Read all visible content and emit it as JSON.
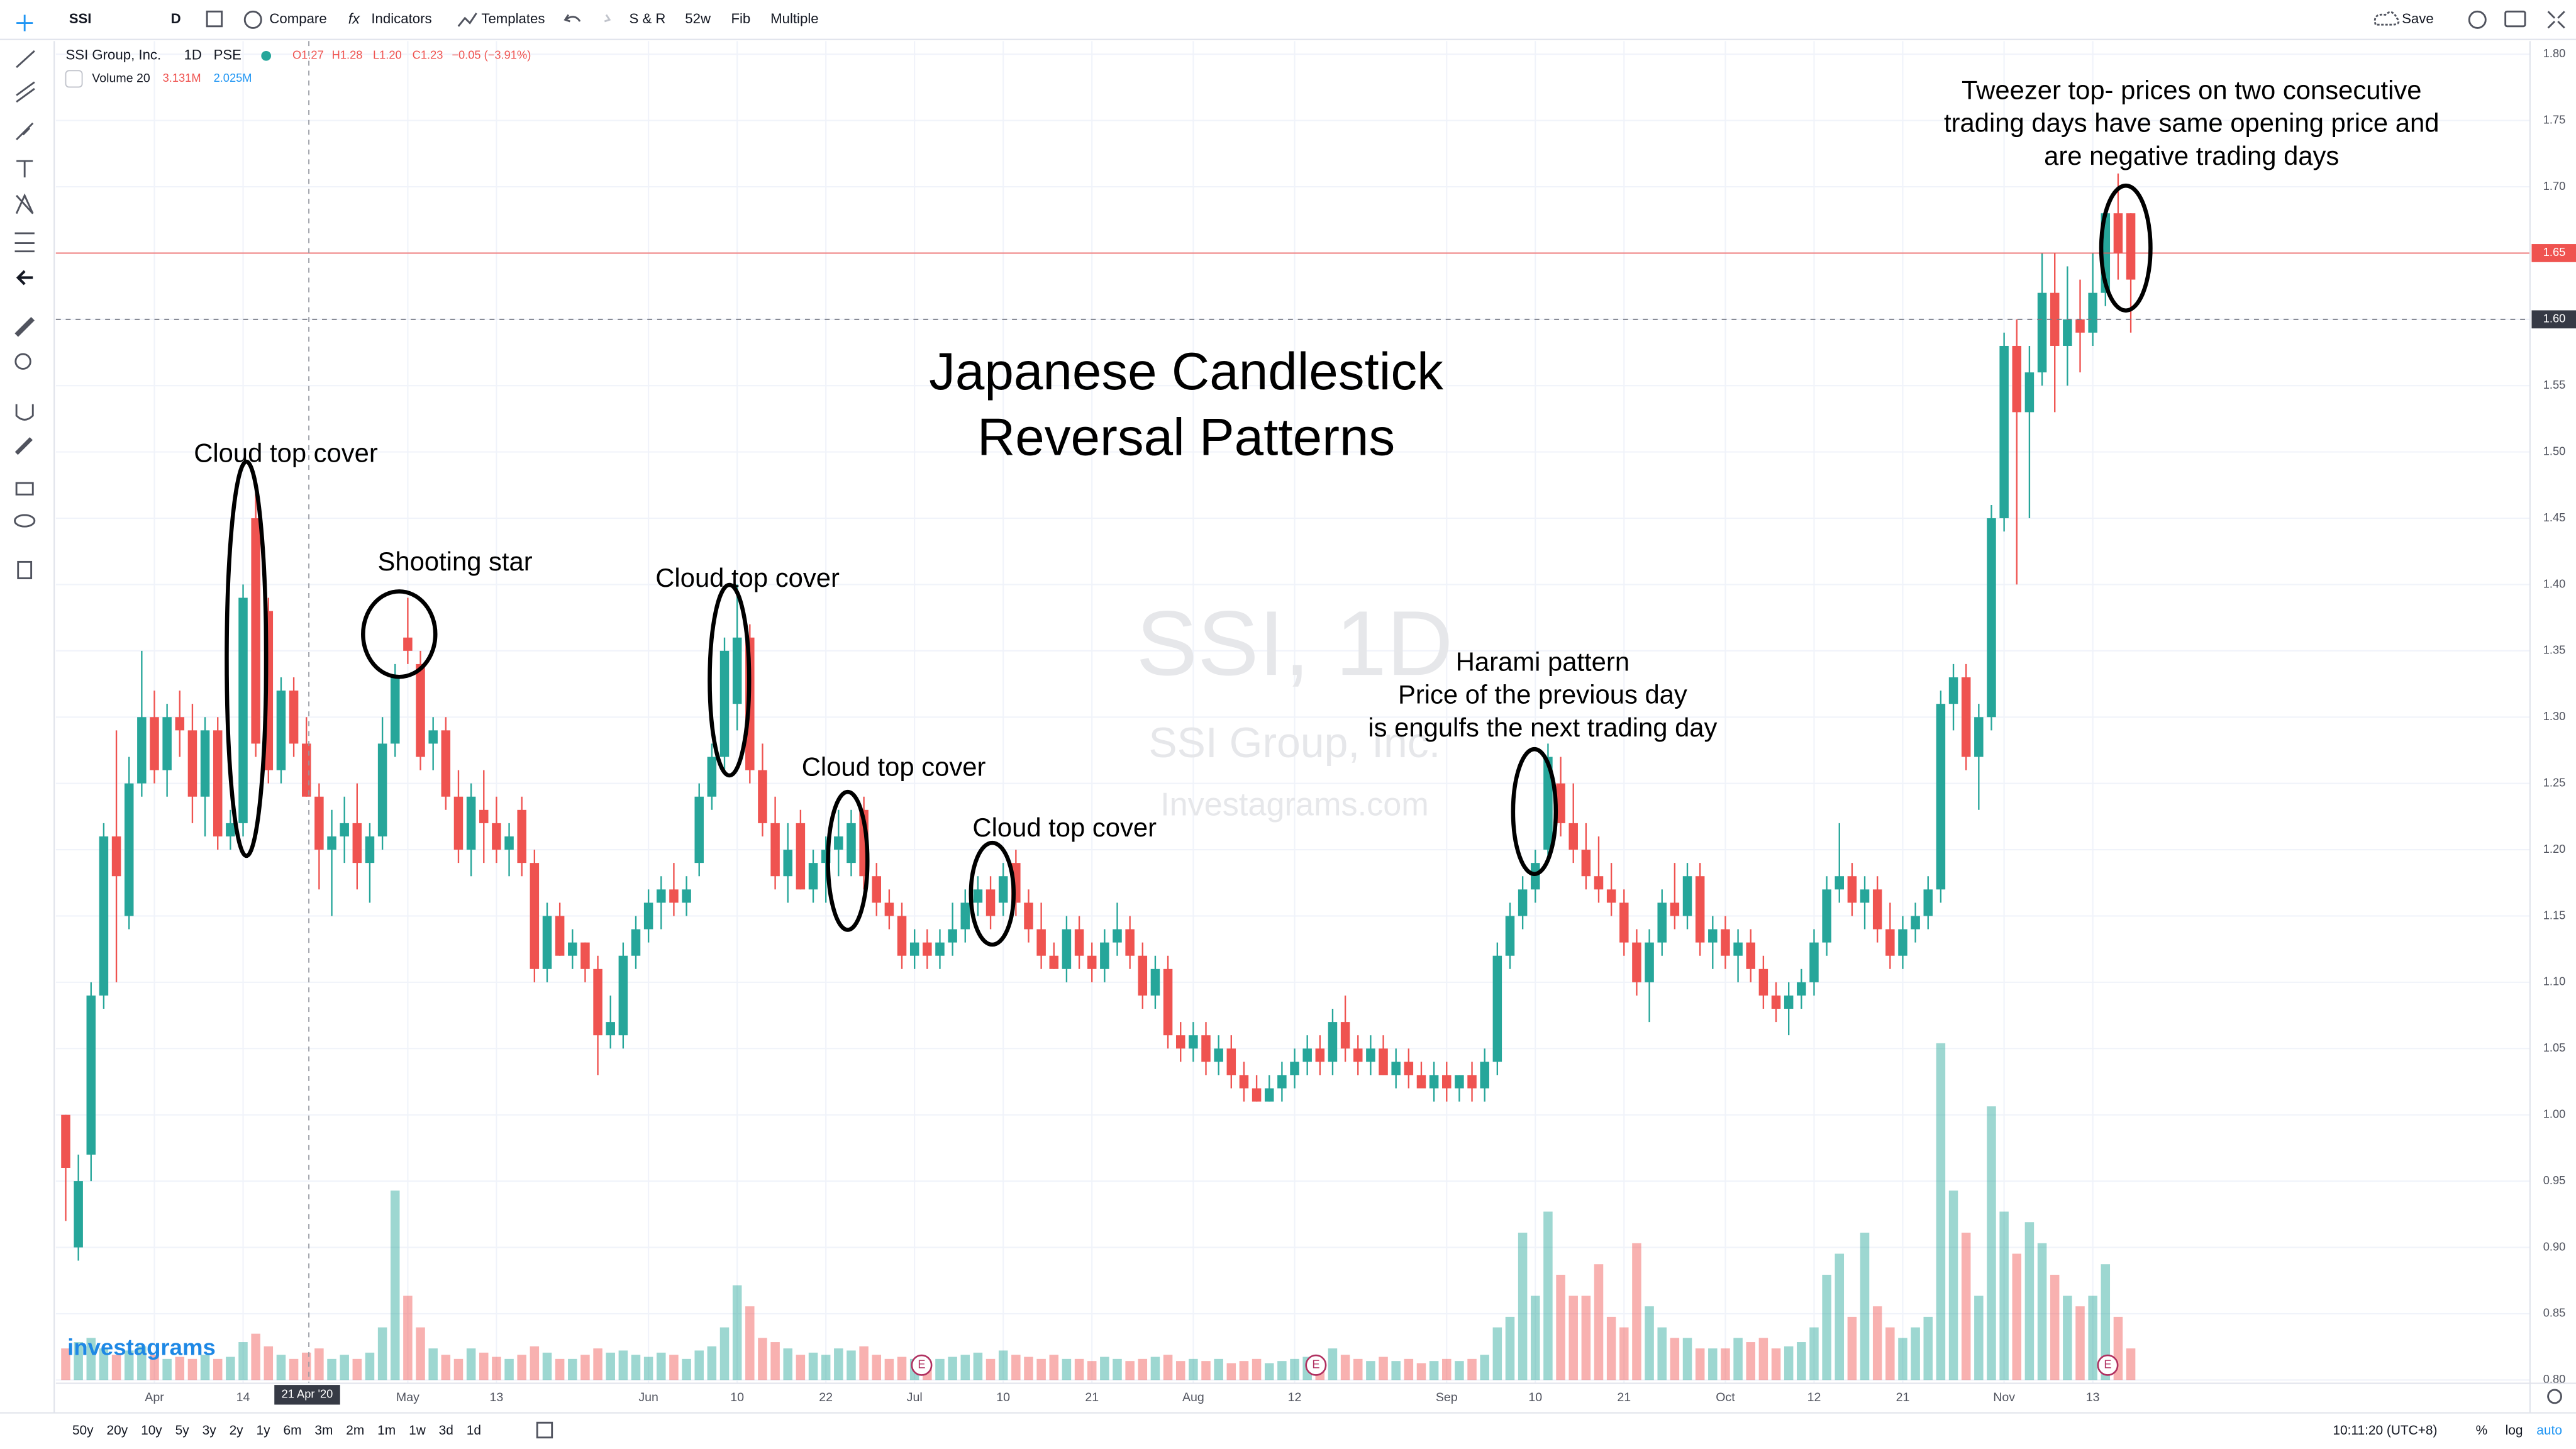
{
  "toolbar": {
    "symbol": "SSI",
    "interval": "D",
    "items": [
      "Compare",
      "Indicators",
      "Templates",
      "S & R",
      "52w",
      "Fib",
      "Multiple"
    ],
    "save": "Save"
  },
  "legend": {
    "name": "SSI Group, Inc.",
    "interval": "1D",
    "exchange": "PSE",
    "ohlc": [
      "O1.27",
      "H1.28",
      "L1.20",
      "C1.23",
      "−0.05 (−3.91%)"
    ],
    "volume_name": "Volume 20",
    "volume_values": [
      "3.131M",
      "2.025M"
    ]
  },
  "watermark": [
    "SSI, 1D",
    "SSI Group, Inc.",
    "Investagrams.com"
  ],
  "logo": "investagrams",
  "events": [
    "E",
    "E",
    "E"
  ],
  "crosshair_date": "21 Apr '20",
  "annotations": [
    "Cloud top cover",
    "Shooting star",
    "Cloud top cover",
    "Cloud top cover",
    "Cloud top cover",
    "Harami pattern",
    "Price of the previous day",
    "is engulfs the next trading day",
    "Tweezer top- prices on two consecutive",
    "trading days have same opening price and",
    "are negative trading days"
  ],
  "bottom_bar": {
    "ranges": [
      "50y",
      "20y",
      "10y",
      "5y",
      "3y",
      "2y",
      "1y",
      "6m",
      "3m",
      "2m",
      "1m",
      "1w",
      "3d",
      "1d"
    ],
    "time": "10:11:20 (UTC+8)",
    "options": [
      "%",
      "log",
      "auto"
    ]
  },
  "chart_data": {
    "type": "candlestick",
    "title": "Japanese Candlestick Reversal Patterns",
    "up_color": "#26a69a",
    "down_color": "#ef5350",
    "ylim": [
      0.8,
      1.8
    ],
    "yticks": [
      {
        "value": 0.8,
        "label": "0.80"
      },
      {
        "value": 0.85,
        "label": "0.85"
      },
      {
        "value": 0.9,
        "label": "0.90"
      },
      {
        "value": 0.95,
        "label": "0.95"
      },
      {
        "value": 1.0,
        "label": "1.00"
      },
      {
        "value": 1.05,
        "label": "1.05"
      },
      {
        "value": 1.1,
        "label": "1.10"
      },
      {
        "value": 1.15,
        "label": "1.15"
      },
      {
        "value": 1.2,
        "label": "1.20"
      },
      {
        "value": 1.25,
        "label": "1.25"
      },
      {
        "value": 1.3,
        "label": "1.30"
      },
      {
        "value": 1.35,
        "label": "1.35"
      },
      {
        "value": 1.4,
        "label": "1.40"
      },
      {
        "value": 1.45,
        "label": "1.45"
      },
      {
        "value": 1.5,
        "label": "1.50"
      },
      {
        "value": 1.55,
        "label": "1.55"
      },
      {
        "value": 1.6,
        "label": "1.60"
      },
      {
        "value": 1.65,
        "label": "1.65"
      },
      {
        "value": 1.7,
        "label": "1.70"
      },
      {
        "value": 1.75,
        "label": "1.75"
      },
      {
        "value": 1.8,
        "label": "1.80"
      }
    ],
    "grid": true,
    "last_price": {
      "value": 1.65,
      "label": "1.65"
    },
    "crosshair_price": {
      "value": 1.6,
      "label": "1.60"
    },
    "categories": [
      null,
      null,
      null,
      null,
      null,
      null,
      null,
      "Apr",
      null,
      null,
      null,
      null,
      null,
      null,
      "14",
      null,
      null,
      null,
      null,
      null,
      null,
      null,
      null,
      null,
      null,
      null,
      null,
      "May",
      null,
      null,
      null,
      null,
      null,
      null,
      "13",
      null,
      null,
      null,
      null,
      null,
      null,
      null,
      null,
      null,
      null,
      null,
      "Jun",
      null,
      null,
      null,
      null,
      null,
      null,
      "10",
      null,
      null,
      null,
      null,
      null,
      null,
      "22",
      null,
      null,
      null,
      null,
      null,
      null,
      "Jul",
      null,
      null,
      null,
      null,
      null,
      null,
      "10",
      null,
      null,
      null,
      null,
      null,
      null,
      "21",
      null,
      null,
      null,
      null,
      null,
      null,
      null,
      "Aug",
      null,
      null,
      null,
      null,
      null,
      null,
      null,
      "12",
      null,
      null,
      null,
      null,
      null,
      null,
      null,
      null,
      null,
      null,
      null,
      "Sep",
      null,
      null,
      null,
      null,
      null,
      null,
      "10",
      null,
      null,
      null,
      null,
      null,
      null,
      "21",
      null,
      null,
      null,
      null,
      null,
      null,
      null,
      "Oct",
      null,
      null,
      null,
      null,
      null,
      null,
      "12",
      null,
      null,
      null,
      null,
      null,
      null,
      "21",
      null,
      null,
      null,
      null,
      null,
      null,
      null,
      "Nov",
      null,
      null,
      null,
      null,
      null,
      null,
      "13",
      null,
      null,
      null
    ],
    "ohlc": [
      [
        1.0,
        1.0,
        0.92,
        0.96
      ],
      [
        0.9,
        0.97,
        0.89,
        0.95
      ],
      [
        0.97,
        1.1,
        0.95,
        1.09
      ],
      [
        1.09,
        1.22,
        1.08,
        1.21
      ],
      [
        1.21,
        1.29,
        1.1,
        1.18
      ],
      [
        1.15,
        1.27,
        1.14,
        1.25
      ],
      [
        1.25,
        1.35,
        1.24,
        1.3
      ],
      [
        1.3,
        1.32,
        1.25,
        1.26
      ],
      [
        1.26,
        1.31,
        1.24,
        1.3
      ],
      [
        1.3,
        1.32,
        1.27,
        1.29
      ],
      [
        1.29,
        1.31,
        1.22,
        1.24
      ],
      [
        1.24,
        1.3,
        1.21,
        1.29
      ],
      [
        1.29,
        1.3,
        1.2,
        1.21
      ],
      [
        1.21,
        1.23,
        1.2,
        1.22
      ],
      [
        1.22,
        1.4,
        1.21,
        1.39
      ],
      [
        1.45,
        1.48,
        1.27,
        1.28
      ],
      [
        1.38,
        1.39,
        1.25,
        1.26
      ],
      [
        1.26,
        1.33,
        1.25,
        1.32
      ],
      [
        1.32,
        1.33,
        1.27,
        1.28
      ],
      [
        1.28,
        1.3,
        1.24,
        1.24
      ],
      [
        1.24,
        1.25,
        1.17,
        1.2
      ],
      [
        1.2,
        1.23,
        1.15,
        1.21
      ],
      [
        1.21,
        1.24,
        1.19,
        1.22
      ],
      [
        1.22,
        1.25,
        1.17,
        1.19
      ],
      [
        1.19,
        1.22,
        1.16,
        1.21
      ],
      [
        1.21,
        1.3,
        1.2,
        1.28
      ],
      [
        1.28,
        1.34,
        1.27,
        1.33
      ],
      [
        1.36,
        1.39,
        1.34,
        1.35
      ],
      [
        1.34,
        1.35,
        1.26,
        1.27
      ],
      [
        1.28,
        1.3,
        1.26,
        1.29
      ],
      [
        1.29,
        1.3,
        1.23,
        1.24
      ],
      [
        1.24,
        1.26,
        1.19,
        1.2
      ],
      [
        1.2,
        1.25,
        1.18,
        1.24
      ],
      [
        1.23,
        1.26,
        1.19,
        1.22
      ],
      [
        1.22,
        1.24,
        1.19,
        1.2
      ],
      [
        1.2,
        1.22,
        1.18,
        1.21
      ],
      [
        1.23,
        1.24,
        1.18,
        1.19
      ],
      [
        1.19,
        1.2,
        1.1,
        1.11
      ],
      [
        1.11,
        1.16,
        1.1,
        1.15
      ],
      [
        1.15,
        1.16,
        1.12,
        1.12
      ],
      [
        1.12,
        1.14,
        1.11,
        1.13
      ],
      [
        1.13,
        1.13,
        1.1,
        1.11
      ],
      [
        1.11,
        1.12,
        1.03,
        1.06
      ],
      [
        1.06,
        1.09,
        1.05,
        1.07
      ],
      [
        1.06,
        1.13,
        1.05,
        1.12
      ],
      [
        1.12,
        1.15,
        1.11,
        1.14
      ],
      [
        1.14,
        1.17,
        1.13,
        1.16
      ],
      [
        1.16,
        1.18,
        1.14,
        1.17
      ],
      [
        1.17,
        1.19,
        1.15,
        1.16
      ],
      [
        1.16,
        1.18,
        1.15,
        1.17
      ],
      [
        1.19,
        1.25,
        1.18,
        1.24
      ],
      [
        1.24,
        1.28,
        1.23,
        1.27
      ],
      [
        1.27,
        1.36,
        1.26,
        1.35
      ],
      [
        1.31,
        1.4,
        1.29,
        1.36
      ],
      [
        1.36,
        1.37,
        1.25,
        1.26
      ],
      [
        1.26,
        1.28,
        1.21,
        1.22
      ],
      [
        1.22,
        1.24,
        1.17,
        1.18
      ],
      [
        1.18,
        1.22,
        1.16,
        1.2
      ],
      [
        1.22,
        1.23,
        1.17,
        1.17
      ],
      [
        1.17,
        1.2,
        1.16,
        1.19
      ],
      [
        1.19,
        1.21,
        1.16,
        1.2
      ],
      [
        1.2,
        1.23,
        1.18,
        1.21
      ],
      [
        1.19,
        1.23,
        1.18,
        1.22
      ],
      [
        1.23,
        1.24,
        1.17,
        1.18
      ],
      [
        1.18,
        1.19,
        1.15,
        1.16
      ],
      [
        1.16,
        1.17,
        1.14,
        1.15
      ],
      [
        1.15,
        1.16,
        1.11,
        1.12
      ],
      [
        1.12,
        1.14,
        1.11,
        1.13
      ],
      [
        1.13,
        1.14,
        1.11,
        1.12
      ],
      [
        1.12,
        1.14,
        1.11,
        1.13
      ],
      [
        1.13,
        1.16,
        1.12,
        1.14
      ],
      [
        1.14,
        1.17,
        1.13,
        1.16
      ],
      [
        1.16,
        1.18,
        1.15,
        1.17
      ],
      [
        1.17,
        1.18,
        1.14,
        1.15
      ],
      [
        1.16,
        1.19,
        1.15,
        1.18
      ],
      [
        1.19,
        1.2,
        1.15,
        1.16
      ],
      [
        1.16,
        1.17,
        1.13,
        1.14
      ],
      [
        1.14,
        1.16,
        1.11,
        1.12
      ],
      [
        1.12,
        1.13,
        1.11,
        1.11
      ],
      [
        1.11,
        1.15,
        1.1,
        1.14
      ],
      [
        1.14,
        1.15,
        1.11,
        1.12
      ],
      [
        1.12,
        1.13,
        1.1,
        1.11
      ],
      [
        1.11,
        1.14,
        1.1,
        1.13
      ],
      [
        1.13,
        1.16,
        1.12,
        1.14
      ],
      [
        1.14,
        1.15,
        1.11,
        1.12
      ],
      [
        1.12,
        1.13,
        1.08,
        1.09
      ],
      [
        1.09,
        1.12,
        1.08,
        1.11
      ],
      [
        1.11,
        1.12,
        1.05,
        1.06
      ],
      [
        1.06,
        1.07,
        1.04,
        1.05
      ],
      [
        1.05,
        1.07,
        1.04,
        1.06
      ],
      [
        1.06,
        1.07,
        1.03,
        1.04
      ],
      [
        1.04,
        1.06,
        1.03,
        1.05
      ],
      [
        1.05,
        1.06,
        1.02,
        1.03
      ],
      [
        1.03,
        1.04,
        1.01,
        1.02
      ],
      [
        1.02,
        1.03,
        1.01,
        1.01
      ],
      [
        1.01,
        1.03,
        1.01,
        1.02
      ],
      [
        1.02,
        1.04,
        1.01,
        1.03
      ],
      [
        1.03,
        1.05,
        1.02,
        1.04
      ],
      [
        1.04,
        1.06,
        1.03,
        1.05
      ],
      [
        1.05,
        1.06,
        1.03,
        1.04
      ],
      [
        1.04,
        1.08,
        1.03,
        1.07
      ],
      [
        1.07,
        1.09,
        1.04,
        1.05
      ],
      [
        1.05,
        1.06,
        1.03,
        1.04
      ],
      [
        1.04,
        1.06,
        1.03,
        1.05
      ],
      [
        1.05,
        1.06,
        1.03,
        1.03
      ],
      [
        1.03,
        1.05,
        1.02,
        1.04
      ],
      [
        1.04,
        1.05,
        1.02,
        1.03
      ],
      [
        1.03,
        1.04,
        1.02,
        1.02
      ],
      [
        1.02,
        1.04,
        1.01,
        1.03
      ],
      [
        1.03,
        1.04,
        1.01,
        1.02
      ],
      [
        1.02,
        1.03,
        1.01,
        1.03
      ],
      [
        1.03,
        1.04,
        1.01,
        1.02
      ],
      [
        1.02,
        1.05,
        1.01,
        1.04
      ],
      [
        1.04,
        1.13,
        1.03,
        1.12
      ],
      [
        1.12,
        1.16,
        1.11,
        1.15
      ],
      [
        1.15,
        1.18,
        1.14,
        1.17
      ],
      [
        1.17,
        1.2,
        1.16,
        1.19
      ],
      [
        1.2,
        1.28,
        1.19,
        1.27
      ],
      [
        1.25,
        1.27,
        1.21,
        1.22
      ],
      [
        1.22,
        1.25,
        1.19,
        1.2
      ],
      [
        1.2,
        1.22,
        1.17,
        1.18
      ],
      [
        1.18,
        1.21,
        1.16,
        1.17
      ],
      [
        1.17,
        1.19,
        1.15,
        1.16
      ],
      [
        1.16,
        1.17,
        1.12,
        1.13
      ],
      [
        1.13,
        1.14,
        1.09,
        1.1
      ],
      [
        1.1,
        1.14,
        1.07,
        1.13
      ],
      [
        1.13,
        1.17,
        1.12,
        1.16
      ],
      [
        1.16,
        1.19,
        1.14,
        1.15
      ],
      [
        1.15,
        1.19,
        1.14,
        1.18
      ],
      [
        1.18,
        1.19,
        1.12,
        1.13
      ],
      [
        1.13,
        1.15,
        1.11,
        1.14
      ],
      [
        1.14,
        1.15,
        1.11,
        1.12
      ],
      [
        1.12,
        1.14,
        1.1,
        1.13
      ],
      [
        1.13,
        1.14,
        1.1,
        1.11
      ],
      [
        1.11,
        1.12,
        1.08,
        1.09
      ],
      [
        1.09,
        1.1,
        1.07,
        1.08
      ],
      [
        1.08,
        1.1,
        1.06,
        1.09
      ],
      [
        1.09,
        1.11,
        1.08,
        1.1
      ],
      [
        1.1,
        1.14,
        1.09,
        1.13
      ],
      [
        1.13,
        1.18,
        1.12,
        1.17
      ],
      [
        1.17,
        1.22,
        1.16,
        1.18
      ],
      [
        1.18,
        1.19,
        1.15,
        1.16
      ],
      [
        1.16,
        1.18,
        1.14,
        1.17
      ],
      [
        1.17,
        1.18,
        1.13,
        1.14
      ],
      [
        1.14,
        1.16,
        1.11,
        1.12
      ],
      [
        1.12,
        1.15,
        1.11,
        1.14
      ],
      [
        1.14,
        1.16,
        1.13,
        1.15
      ],
      [
        1.15,
        1.18,
        1.14,
        1.17
      ],
      [
        1.17,
        1.32,
        1.16,
        1.31
      ],
      [
        1.31,
        1.34,
        1.29,
        1.33
      ],
      [
        1.33,
        1.34,
        1.26,
        1.27
      ],
      [
        1.27,
        1.31,
        1.23,
        1.3
      ],
      [
        1.3,
        1.46,
        1.29,
        1.45
      ],
      [
        1.45,
        1.59,
        1.44,
        1.58
      ],
      [
        1.58,
        1.6,
        1.4,
        1.53
      ],
      [
        1.53,
        1.58,
        1.45,
        1.56
      ],
      [
        1.56,
        1.65,
        1.55,
        1.62
      ],
      [
        1.62,
        1.65,
        1.53,
        1.58
      ],
      [
        1.58,
        1.64,
        1.55,
        1.6
      ],
      [
        1.6,
        1.63,
        1.56,
        1.59
      ],
      [
        1.59,
        1.65,
        1.58,
        1.62
      ],
      [
        1.62,
        1.68,
        1.61,
        1.68
      ],
      [
        1.68,
        1.71,
        1.63,
        1.65
      ],
      [
        1.68,
        1.68,
        1.59,
        1.63
      ]
    ],
    "volume": [
      1.5,
      1.8,
      2,
      1.5,
      1.2,
      1.4,
      1.6,
      1.2,
      1,
      1.1,
      1,
      1.2,
      1,
      1.1,
      1.8,
      2.2,
      1.6,
      1.2,
      1,
      1.3,
      1.5,
      1,
      1.2,
      1,
      1.3,
      2.5,
      9,
      4,
      2.5,
      1.5,
      1.2,
      1,
      1.5,
      1.3,
      1.1,
      1,
      1.2,
      1.6,
      1.3,
      1,
      1,
      1.2,
      1.5,
      1.3,
      1.4,
      1.2,
      1.1,
      1.3,
      1.2,
      1,
      1.4,
      1.6,
      2.5,
      4.5,
      3.5,
      2,
      1.8,
      1.5,
      1.2,
      1.3,
      1.2,
      1.5,
      1.4,
      1.6,
      1.2,
      1,
      1.1,
      1,
      0.9,
      1,
      1.1,
      1.2,
      1.3,
      1,
      1.4,
      1.2,
      1.1,
      1,
      1.2,
      1,
      1,
      0.9,
      1.1,
      1,
      0.9,
      1,
      1.1,
      1.2,
      0.9,
      1,
      0.9,
      1,
      0.8,
      0.9,
      1,
      0.8,
      0.9,
      1,
      1.1,
      0.9,
      1.5,
      1.2,
      1,
      0.9,
      1.1,
      0.9,
      1,
      0.8,
      0.9,
      1,
      0.9,
      1,
      1.2,
      2.5,
      3,
      7,
      4,
      8,
      5,
      4,
      4,
      5.5,
      3,
      2.5,
      6.5,
      3.5,
      2.5,
      2,
      2,
      1.5,
      1.5,
      1.5,
      2,
      1.8,
      2,
      1.5,
      1.6,
      1.8,
      2.5,
      5,
      6,
      3,
      7,
      3.5,
      2.5,
      2,
      2.5,
      3,
      16,
      9,
      7,
      4,
      13,
      8,
      6,
      7.5,
      6.5,
      5,
      4,
      3.5,
      4,
      5.5,
      3,
      1.5
    ]
  }
}
